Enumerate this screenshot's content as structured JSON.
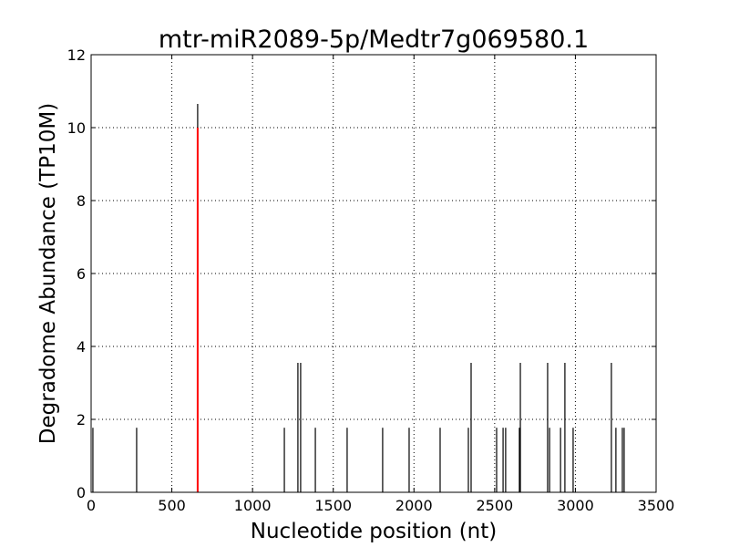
{
  "chart_data": {
    "type": "vlines",
    "title": "mtr-miR2089-5p/Medtr7g069580.1",
    "x_label": "Nucleotide position (nt)",
    "y_label": "Degradome Abundance (TP10M)",
    "series": [
      {
        "color": "#000000",
        "x": [
          11,
          282,
          660,
          1197,
          1281,
          1298,
          1389,
          1586,
          1806,
          1970,
          2162,
          2337,
          2354,
          2512,
          2552,
          2568,
          2653,
          2659,
          2828,
          2840,
          2908,
          2935,
          2986,
          3223,
          3251,
          3291,
          3302
        ],
        "values": [
          1.77,
          1.77,
          10.65,
          1.77,
          3.55,
          3.55,
          1.77,
          1.77,
          1.77,
          1.77,
          1.77,
          1.77,
          3.55,
          1.77,
          1.77,
          1.77,
          1.77,
          3.55,
          3.55,
          1.77,
          1.77,
          3.55,
          1.77,
          3.55,
          1.77,
          1.77,
          1.77
        ]
      },
      {
        "color": "#ff0000",
        "x": [
          660
        ],
        "values": [
          10
        ]
      }
    ],
    "xlim": [
      0,
      3500
    ],
    "xticks": [
      0,
      500,
      1000,
      1500,
      2000,
      2500,
      3000,
      3500
    ],
    "ylim": [
      0,
      12
    ],
    "yticks": [
      0,
      2,
      4,
      6,
      8,
      10,
      12
    ],
    "grid": true
  }
}
